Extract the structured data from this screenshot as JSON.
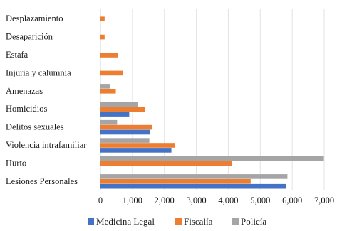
{
  "chart_data": {
    "type": "bar",
    "orientation": "horizontal",
    "title": "",
    "xlabel": "",
    "ylabel": "",
    "xlim": [
      0,
      7000
    ],
    "xticks": [
      0,
      1000,
      2000,
      3000,
      4000,
      5000,
      6000,
      7000
    ],
    "xtick_labels": [
      "0",
      "1,000",
      "2,000",
      "3,000",
      "4,000",
      "5,000",
      "6,000",
      "7,000"
    ],
    "grid": true,
    "legend_position": "bottom",
    "categories": [
      "Lesiones Personales",
      "Hurto",
      "Violencia intrafamiliar",
      "Delitos sexuales",
      "Homicidios",
      "Amenazas",
      "Injuria y calumnia",
      "Estafa",
      "Desaparición",
      "Desplazamiento"
    ],
    "series": [
      {
        "name": "Medicina Legal",
        "color": "#4472C4",
        "values": [
          5800,
          0,
          2220,
          1560,
          900,
          0,
          0,
          0,
          0,
          0
        ]
      },
      {
        "name": "Fiscalía",
        "color": "#ED7D31",
        "values": [
          4700,
          4120,
          2320,
          1620,
          1400,
          480,
          700,
          550,
          130,
          130
        ]
      },
      {
        "name": "Policía",
        "color": "#A5A5A5",
        "values": [
          5850,
          6990,
          1530,
          520,
          1170,
          310,
          0,
          0,
          0,
          0
        ]
      }
    ]
  }
}
